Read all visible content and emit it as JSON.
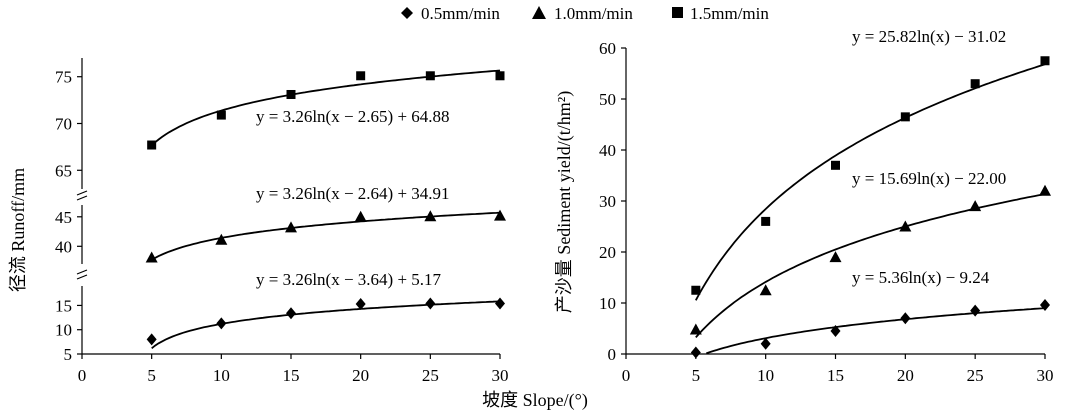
{
  "legend": [
    {
      "label": "0.5mm/min",
      "marker": "diamond"
    },
    {
      "label": "1.0mm/min",
      "marker": "triangle"
    },
    {
      "label": "1.5mm/min",
      "marker": "square"
    }
  ],
  "shared_xlabel": "坡度 Slope/(°)",
  "chart_data": [
    {
      "type": "scatter",
      "title": "",
      "xlabel": "坡度 Slope/(°)",
      "ylabel": "径流 Runoff/mm",
      "xlim": [
        0,
        30
      ],
      "xticks": [
        0,
        5,
        10,
        15,
        20,
        25,
        30
      ],
      "broken_axis": true,
      "y_segments": [
        {
          "ylim": [
            5,
            19
          ],
          "ticks": [
            5,
            10,
            15
          ]
        },
        {
          "ylim": [
            37,
            47
          ],
          "ticks": [
            40,
            45
          ]
        },
        {
          "ylim": [
            63,
            77
          ],
          "ticks": [
            65,
            70,
            75
          ]
        }
      ],
      "grid": false,
      "legend_position": "top",
      "series": [
        {
          "name": "0.5mm/min",
          "marker": "diamond",
          "x": [
            5,
            10,
            15,
            20,
            25,
            30
          ],
          "y": [
            8.0,
            11.3,
            13.4,
            15.3,
            15.4,
            15.4
          ],
          "fit": {
            "a": 3.26,
            "shift": 3.64,
            "b": 5.17
          },
          "equation": "y = 3.26ln(x − 3.64) + 5.17"
        },
        {
          "name": "1.0mm/min",
          "marker": "triangle",
          "x": [
            5,
            10,
            15,
            20,
            25,
            30
          ],
          "y": [
            38.1,
            41.1,
            43.2,
            45.0,
            45.1,
            45.2
          ],
          "fit": {
            "a": 3.26,
            "shift": 2.64,
            "b": 34.91
          },
          "equation": "y = 3.26ln(x − 2.64) + 34.91"
        },
        {
          "name": "1.5mm/min",
          "marker": "square",
          "x": [
            5,
            10,
            15,
            20,
            25,
            30
          ],
          "y": [
            67.7,
            70.9,
            73.1,
            75.1,
            75.1,
            75.1
          ],
          "fit": {
            "a": 3.26,
            "shift": 2.65,
            "b": 64.88
          },
          "equation": "y = 3.26ln(x − 2.65) + 64.88"
        }
      ]
    },
    {
      "type": "scatter",
      "title": "",
      "xlabel": "坡度 Slope/(°)",
      "ylabel": "产沙量 Sediment yield/(t/hm²)",
      "xlim": [
        0,
        30
      ],
      "ylim": [
        0,
        60
      ],
      "xticks": [
        0,
        5,
        10,
        15,
        20,
        25,
        30
      ],
      "yticks": [
        0,
        10,
        20,
        30,
        40,
        50,
        60
      ],
      "grid": false,
      "legend_position": "top",
      "series": [
        {
          "name": "0.5mm/min",
          "marker": "diamond",
          "x": [
            5,
            10,
            15,
            20,
            25,
            30
          ],
          "y": [
            0.3,
            2.0,
            4.5,
            7.0,
            8.5,
            9.6
          ],
          "fit": {
            "a": 5.36,
            "shift": 0,
            "b": -9.24
          },
          "equation": "y =  5.36ln(x) − 9.24"
        },
        {
          "name": "1.0mm/min",
          "marker": "triangle",
          "x": [
            5,
            10,
            15,
            20,
            25,
            30
          ],
          "y": [
            4.8,
            12.5,
            19.0,
            25.0,
            29.0,
            32.0
          ],
          "fit": {
            "a": 15.69,
            "shift": 0,
            "b": -22.0
          },
          "equation": "y = 15.69ln(x) − 22.00"
        },
        {
          "name": "1.5mm/min",
          "marker": "square",
          "x": [
            5,
            10,
            15,
            20,
            25,
            30
          ],
          "y": [
            12.5,
            26.0,
            37.0,
            46.5,
            53.0,
            57.5
          ],
          "fit": {
            "a": 25.82,
            "shift": 0,
            "b": -31.02
          },
          "equation": "y = 25.82ln(x) − 31.02"
        }
      ]
    }
  ]
}
